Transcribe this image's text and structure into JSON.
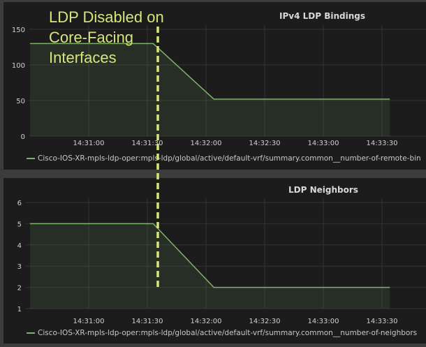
{
  "annotation": {
    "lines": [
      "LDP Disabled on",
      "Core-Facing",
      "Interfaces"
    ],
    "color": "#d8e57c",
    "time": "14:31:33"
  },
  "chart_data": [
    {
      "type": "area",
      "title": "IPv4 LDP Bindings",
      "xlabel": "",
      "ylabel": "",
      "x_ticks": [
        "14:31:00",
        "14:31:30",
        "14:32:00",
        "14:32:30",
        "14:33:00",
        "14:33:30"
      ],
      "y_ticks": [
        0,
        50,
        100,
        150
      ],
      "ylim": [
        0,
        150
      ],
      "grid": true,
      "legend_position": "bottom",
      "series": [
        {
          "name": "Cisco-IOS-XR-mpls-ldp-oper:mpls-ldp/global/active/default-vrf/summary.common__number-of-remote-bindings",
          "legend_text": "Cisco-IOS-XR-mpls-ldp-oper:mpls-ldp/global/active/default-vrf/summary.common__number-of-remote-bin",
          "color": "#7eb26d",
          "x": [
            "14:30:30",
            "14:31:33",
            "14:32:04",
            "14:33:34"
          ],
          "values": [
            130,
            130,
            52,
            52
          ]
        }
      ]
    },
    {
      "type": "area",
      "title": "LDP Neighbors",
      "xlabel": "",
      "ylabel": "",
      "x_ticks": [
        "14:31:00",
        "14:31:30",
        "14:32:00",
        "14:32:30",
        "14:33:00",
        "14:33:30"
      ],
      "y_ticks": [
        1,
        2,
        3,
        4,
        5,
        6
      ],
      "ylim": [
        1,
        6
      ],
      "grid": true,
      "legend_position": "bottom",
      "series": [
        {
          "name": "Cisco-IOS-XR-mpls-ldp-oper:mpls-ldp/global/active/default-vrf/summary.common__number-of-neighbors",
          "legend_text": "Cisco-IOS-XR-mpls-ldp-oper:mpls-ldp/global/active/default-vrf/summary.common__number-of-neighbors",
          "color": "#7eb26d",
          "x": [
            "14:30:30",
            "14:31:33",
            "14:32:04",
            "14:33:34"
          ],
          "values": [
            5,
            5,
            2,
            2
          ]
        }
      ]
    }
  ]
}
